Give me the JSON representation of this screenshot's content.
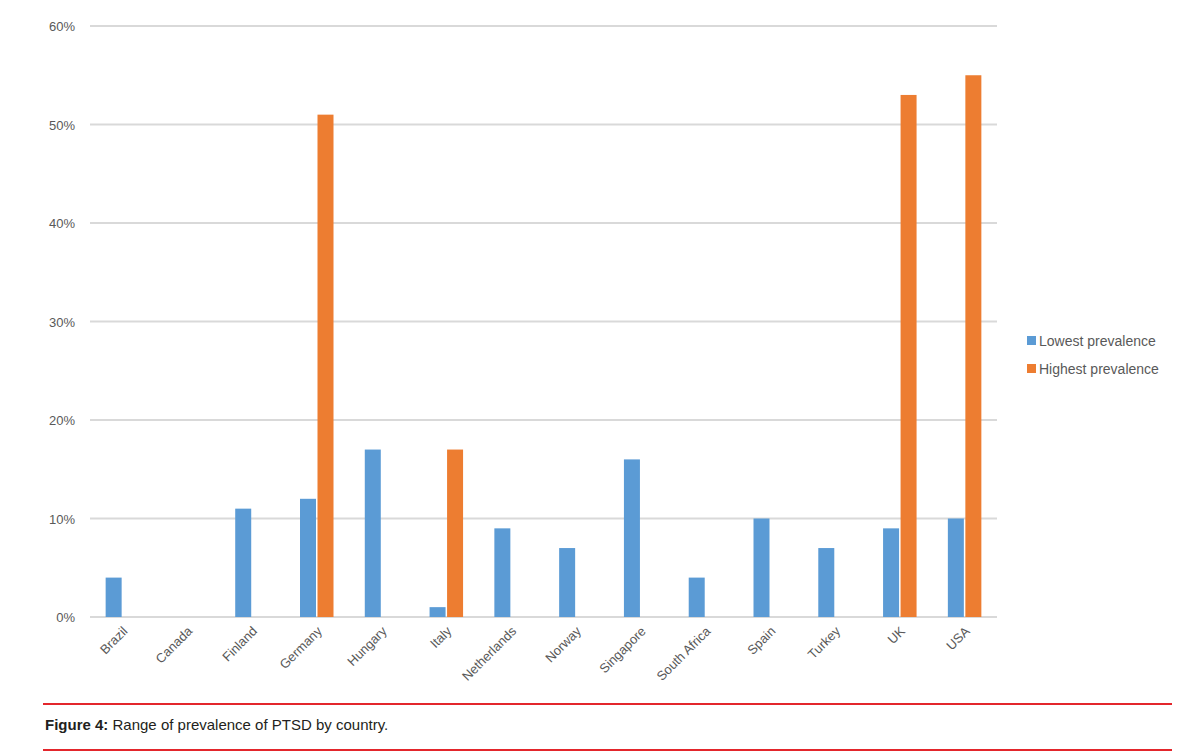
{
  "chart_data": {
    "type": "bar",
    "title": "Figure 4: Range of prevalence of PTSD by country.",
    "categories": [
      "Brazil",
      "Canada",
      "Finland",
      "Germany",
      "Hungary",
      "Italy",
      "Netherlands",
      "Norway",
      "Singapore",
      "South Africa",
      "Spain",
      "Turkey",
      "UK",
      "USA"
    ],
    "series": [
      {
        "name": "Lowest prevalence",
        "color": "#5b9bd5",
        "values": [
          4,
          null,
          11,
          12,
          17,
          1,
          9,
          7,
          16,
          4,
          10,
          7,
          9,
          10
        ]
      },
      {
        "name": "Highest prevalence",
        "color": "#ed7d31",
        "values": [
          null,
          null,
          null,
          51,
          null,
          17,
          null,
          null,
          null,
          null,
          null,
          null,
          53,
          55
        ]
      }
    ],
    "ylim": [
      0,
      60
    ],
    "yticks": [
      {
        "value": 0,
        "label": "0%"
      },
      {
        "value": 10,
        "label": "10%"
      },
      {
        "value": 20,
        "label": "20%"
      },
      {
        "value": 30,
        "label": "30%"
      },
      {
        "value": 40,
        "label": "40%"
      },
      {
        "value": 50,
        "label": "50%"
      },
      {
        "value": 60,
        "label": "60%"
      }
    ],
    "grid": true,
    "legend": "right"
  }
}
